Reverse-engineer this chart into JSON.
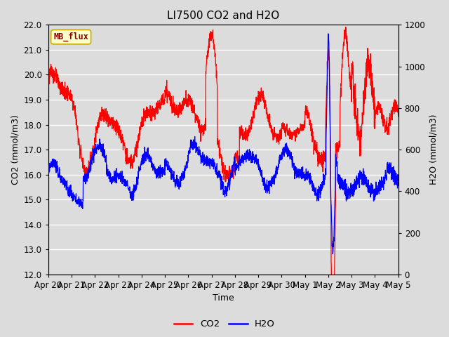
{
  "title": "LI7500 CO2 and H2O",
  "xlabel": "Time",
  "ylabel_left": "CO2 (mmol/m3)",
  "ylabel_right": "H2O (mmol/m3)",
  "ylim_left": [
    12.0,
    22.0
  ],
  "ylim_right": [
    0,
    1200
  ],
  "yticks_left": [
    12.0,
    13.0,
    14.0,
    15.0,
    16.0,
    17.0,
    18.0,
    19.0,
    20.0,
    21.0,
    22.0
  ],
  "yticks_right": [
    0,
    200,
    400,
    600,
    800,
    1000,
    1200
  ],
  "xtick_labels": [
    "Apr 20",
    "Apr 21",
    "Apr 22",
    "Apr 23",
    "Apr 24",
    "Apr 25",
    "Apr 26",
    "Apr 27",
    "Apr 28",
    "Apr 29",
    "Apr 30",
    "May 1",
    "May 2",
    "May 3",
    "May 4",
    "May 5"
  ],
  "co2_color": "#FF0000",
  "h2o_color": "#0000FF",
  "bg_color": "#DCDCDC",
  "legend_label_box": "MB_flux",
  "legend_box_facecolor": "#FFFFCC",
  "legend_box_edgecolor": "#CCAA00",
  "title_fontsize": 11,
  "axis_label_fontsize": 9,
  "tick_fontsize": 8.5
}
